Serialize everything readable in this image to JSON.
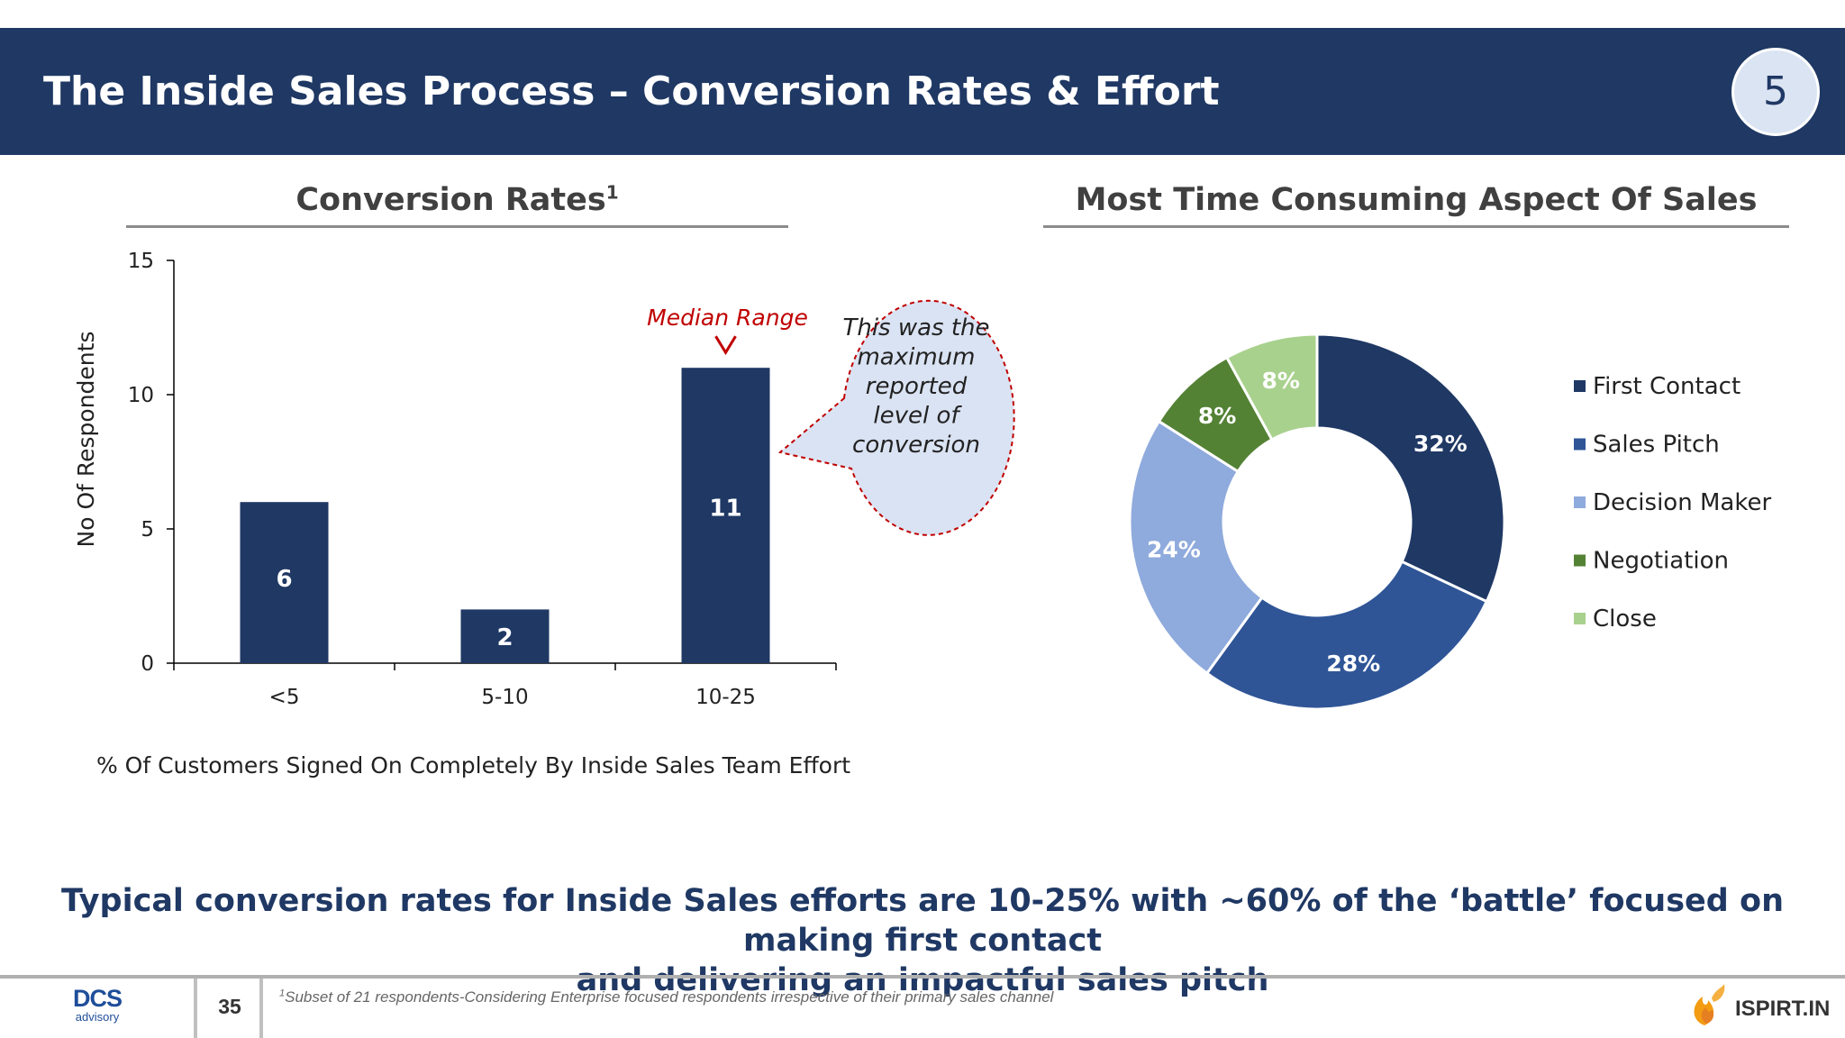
{
  "header": {
    "title": "The Inside Sales Process – Conversion Rates & Effort",
    "badge": "5"
  },
  "left_panel": {
    "title": "Conversion Rates",
    "title_superscript": "1"
  },
  "right_panel": {
    "title": "Most Time Consuming Aspect Of Sales"
  },
  "annotations": {
    "median_label": "Median Range",
    "callout_lines": [
      "This was the",
      "maximum",
      "reported",
      "level of",
      "conversion"
    ]
  },
  "takeaway": {
    "line1": "Typical conversion rates for Inside Sales efforts are 10-25% with ~60% of the ‘battle’ focused on making first contact",
    "line2": "and delivering an impactful sales pitch"
  },
  "footer": {
    "logo_main": "DCS",
    "logo_sub": "advisory",
    "page_number": "35",
    "footnote_mark": "1",
    "footnote": "Subset of 21 respondents-Considering Enterprise focused respondents irrespective of their primary sales channel",
    "brand": "ISPIRT.IN"
  },
  "colors": {
    "navy": "#1f3864",
    "bar": "#1f3864",
    "callout_fill": "#dae3f3",
    "callout_border": "#c00000",
    "median_text": "#c00000"
  },
  "chart_data": [
    {
      "type": "bar",
      "title": "Conversion Rates",
      "categories": [
        "<5",
        "5-10",
        "10-25"
      ],
      "values": [
        6,
        2,
        11
      ],
      "data_labels": [
        "6",
        "2",
        "11"
      ],
      "ylabel": "No Of Respondents",
      "xlabel": "% Of Customers Signed On Completely By Inside Sales Team Effort",
      "ylim": [
        0,
        15
      ],
      "yticks": [
        0,
        5,
        10,
        15
      ],
      "grid": false
    },
    {
      "type": "pie",
      "title": "Most Time Consuming Aspect Of Sales",
      "donut": true,
      "labels": [
        "First Contact",
        "Sales Pitch",
        "Decision Maker",
        "Negotiation",
        "Close"
      ],
      "values": [
        32,
        28,
        24,
        8,
        8
      ],
      "data_labels": [
        "32%",
        "28%",
        "24%",
        "8%",
        "8%"
      ],
      "colors": [
        "#1f3864",
        "#2f5597",
        "#8faadc",
        "#548235",
        "#a9d18e"
      ],
      "legend_position": "right"
    }
  ]
}
